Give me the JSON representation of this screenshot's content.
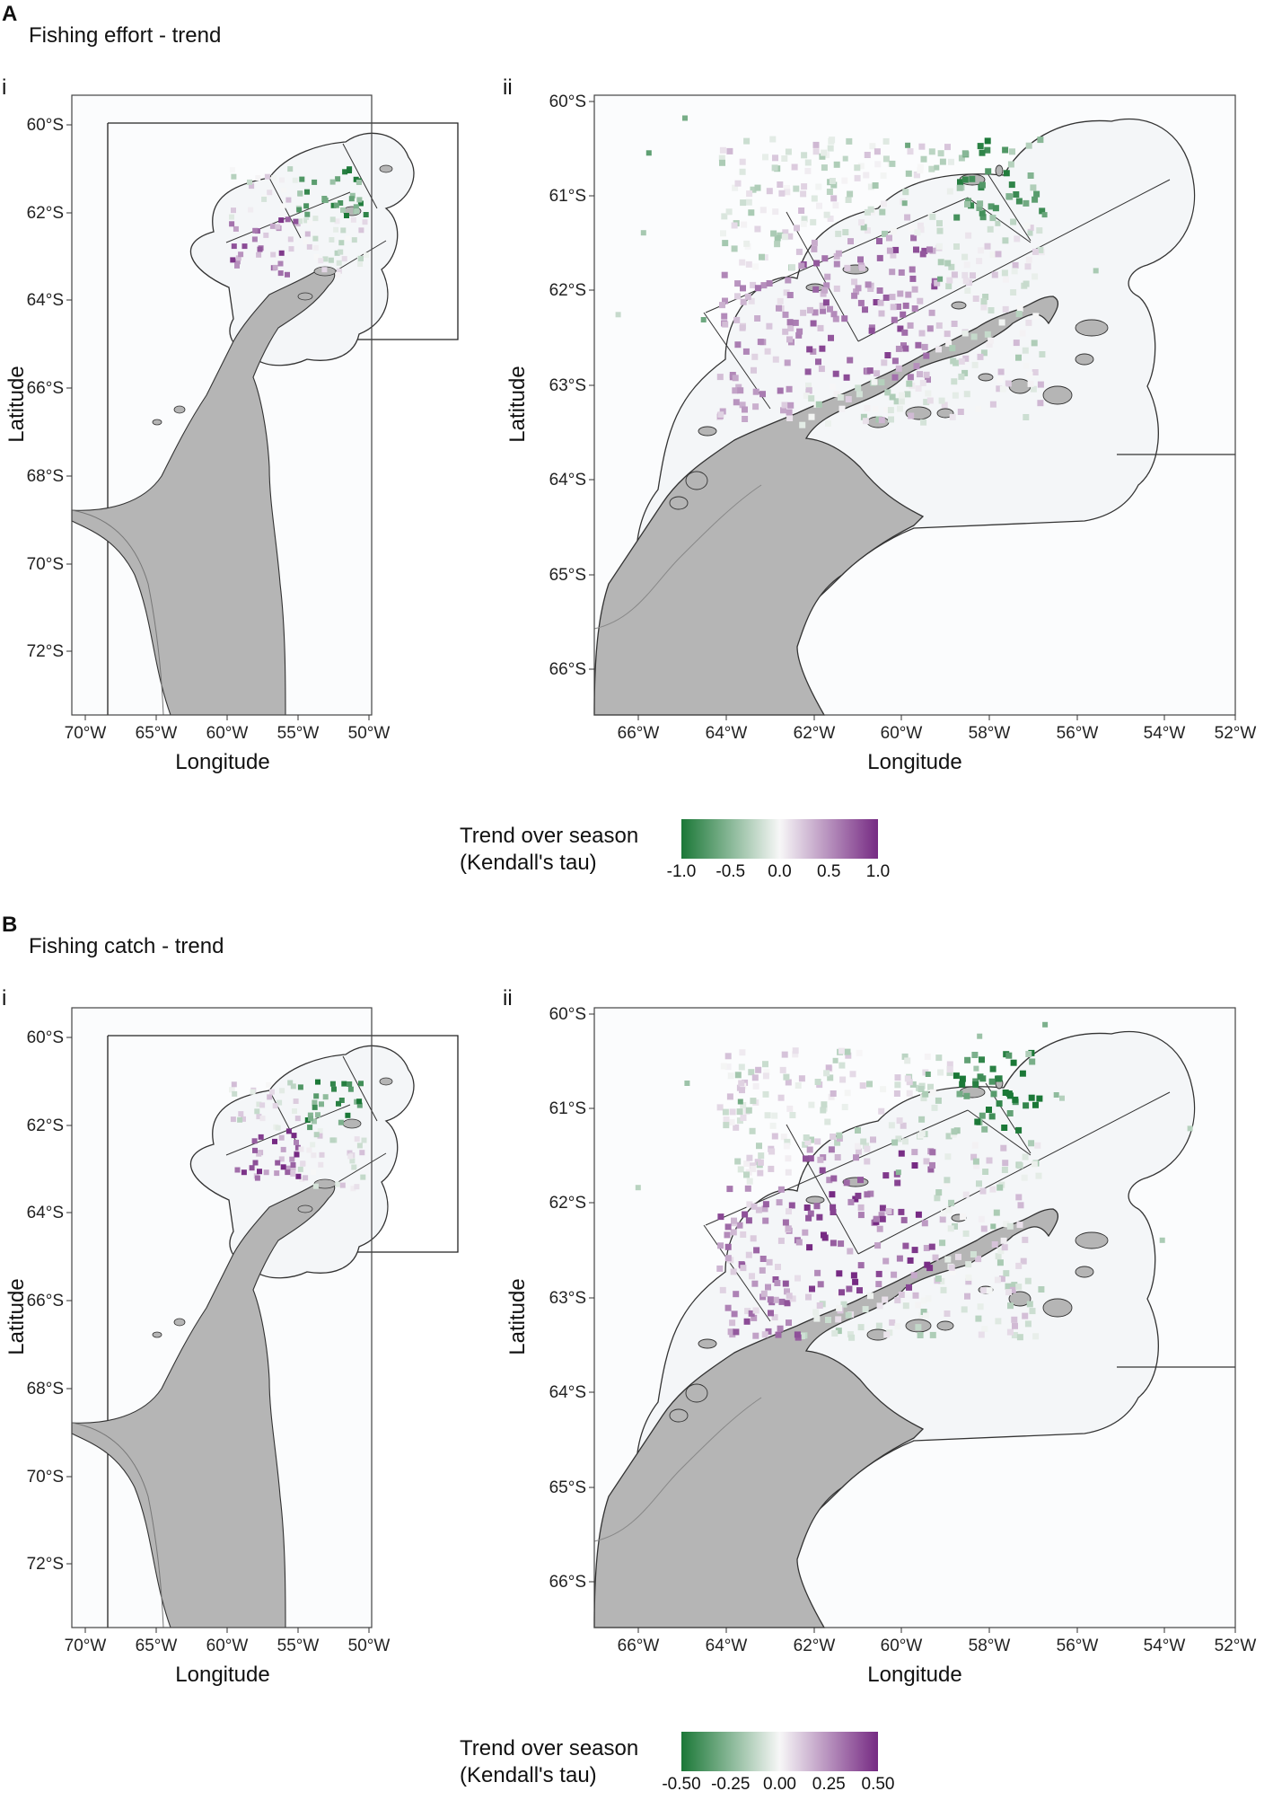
{
  "figure": {
    "sections": [
      {
        "letter": "A",
        "title": "Fishing effort - trend",
        "panels": [
          {
            "label": "i",
            "x_ticks": [
              "70°W",
              "65°W",
              "60°W",
              "55°W",
              "50°W"
            ],
            "y_ticks": [
              "60°S",
              "62°S",
              "64°S",
              "66°S",
              "68°S",
              "70°S",
              "72°S"
            ],
            "xlabel": "Longitude",
            "ylabel": "Latitude"
          },
          {
            "label": "ii",
            "x_ticks": [
              "66°W",
              "64°W",
              "62°W",
              "60°W",
              "58°W",
              "56°W",
              "54°W",
              "52°W"
            ],
            "y_ticks": [
              "60°S",
              "61°S",
              "62°S",
              "63°S",
              "64°S",
              "65°S",
              "66°S"
            ],
            "xlabel": "Longitude",
            "ylabel": "Latitude"
          }
        ],
        "legend": {
          "title_line1": "Trend over season",
          "title_line2": "(Kendall's tau)",
          "tick_labels": [
            "-1.0",
            "-0.5",
            "0.0",
            "0.5",
            "1.0"
          ],
          "min": -1.0,
          "max": 1.0
        }
      },
      {
        "letter": "B",
        "title": "Fishing catch - trend",
        "panels": [
          {
            "label": "i",
            "x_ticks": [
              "70°W",
              "65°W",
              "60°W",
              "55°W",
              "50°W"
            ],
            "y_ticks": [
              "60°S",
              "62°S",
              "64°S",
              "66°S",
              "68°S",
              "70°S",
              "72°S"
            ],
            "xlabel": "Longitude",
            "ylabel": "Latitude"
          },
          {
            "label": "ii",
            "x_ticks": [
              "66°W",
              "64°W",
              "62°W",
              "60°W",
              "58°W",
              "56°W",
              "54°W",
              "52°W"
            ],
            "y_ticks": [
              "60°S",
              "61°S",
              "62°S",
              "63°S",
              "64°S",
              "65°S",
              "66°S"
            ],
            "xlabel": "Longitude",
            "ylabel": "Latitude"
          }
        ],
        "legend": {
          "title_line1": "Trend over season",
          "title_line2": "(Kendall's tau)",
          "tick_labels": [
            "-0.50",
            "-0.25",
            "0.00",
            "0.25",
            "0.50"
          ],
          "min": -0.5,
          "max": 0.5
        }
      }
    ],
    "colors": {
      "negative": "#1b7837",
      "neutral": "#f7f7f7",
      "positive": "#762a83",
      "land": "#b5b5b5",
      "land_edge": "#333333",
      "panel_bg": "#f6f8fa"
    }
  }
}
